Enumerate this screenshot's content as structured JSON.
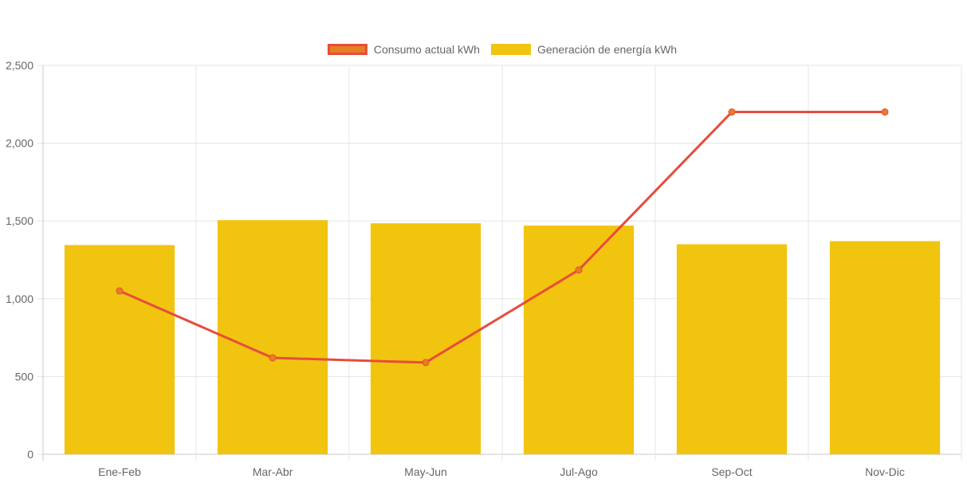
{
  "chart_data": {
    "type": "bar",
    "categories": [
      "Ene-Feb",
      "Mar-Abr",
      "May-Jun",
      "Jul-Ago",
      "Sep-Oct",
      "Nov-Dic"
    ],
    "series": [
      {
        "name": "Consumo actual kWh",
        "type": "line",
        "values": [
          1050,
          620,
          590,
          1185,
          2200,
          2200
        ],
        "color": "#e74c3c",
        "point_color": "#e67e22"
      },
      {
        "name": "Generación de energía kWh",
        "type": "bar",
        "values": [
          1345,
          1505,
          1485,
          1470,
          1350,
          1370
        ],
        "color": "#f1c40f"
      }
    ],
    "ylim": [
      0,
      2500
    ],
    "yticks": [
      0,
      500,
      1000,
      1500,
      2000,
      2500
    ],
    "ytick_labels": [
      "0",
      "500",
      "1,000",
      "1,500",
      "2,000",
      "2,500"
    ],
    "grid": true,
    "legend_position": "top-center",
    "title": "",
    "xlabel": "",
    "ylabel": ""
  }
}
